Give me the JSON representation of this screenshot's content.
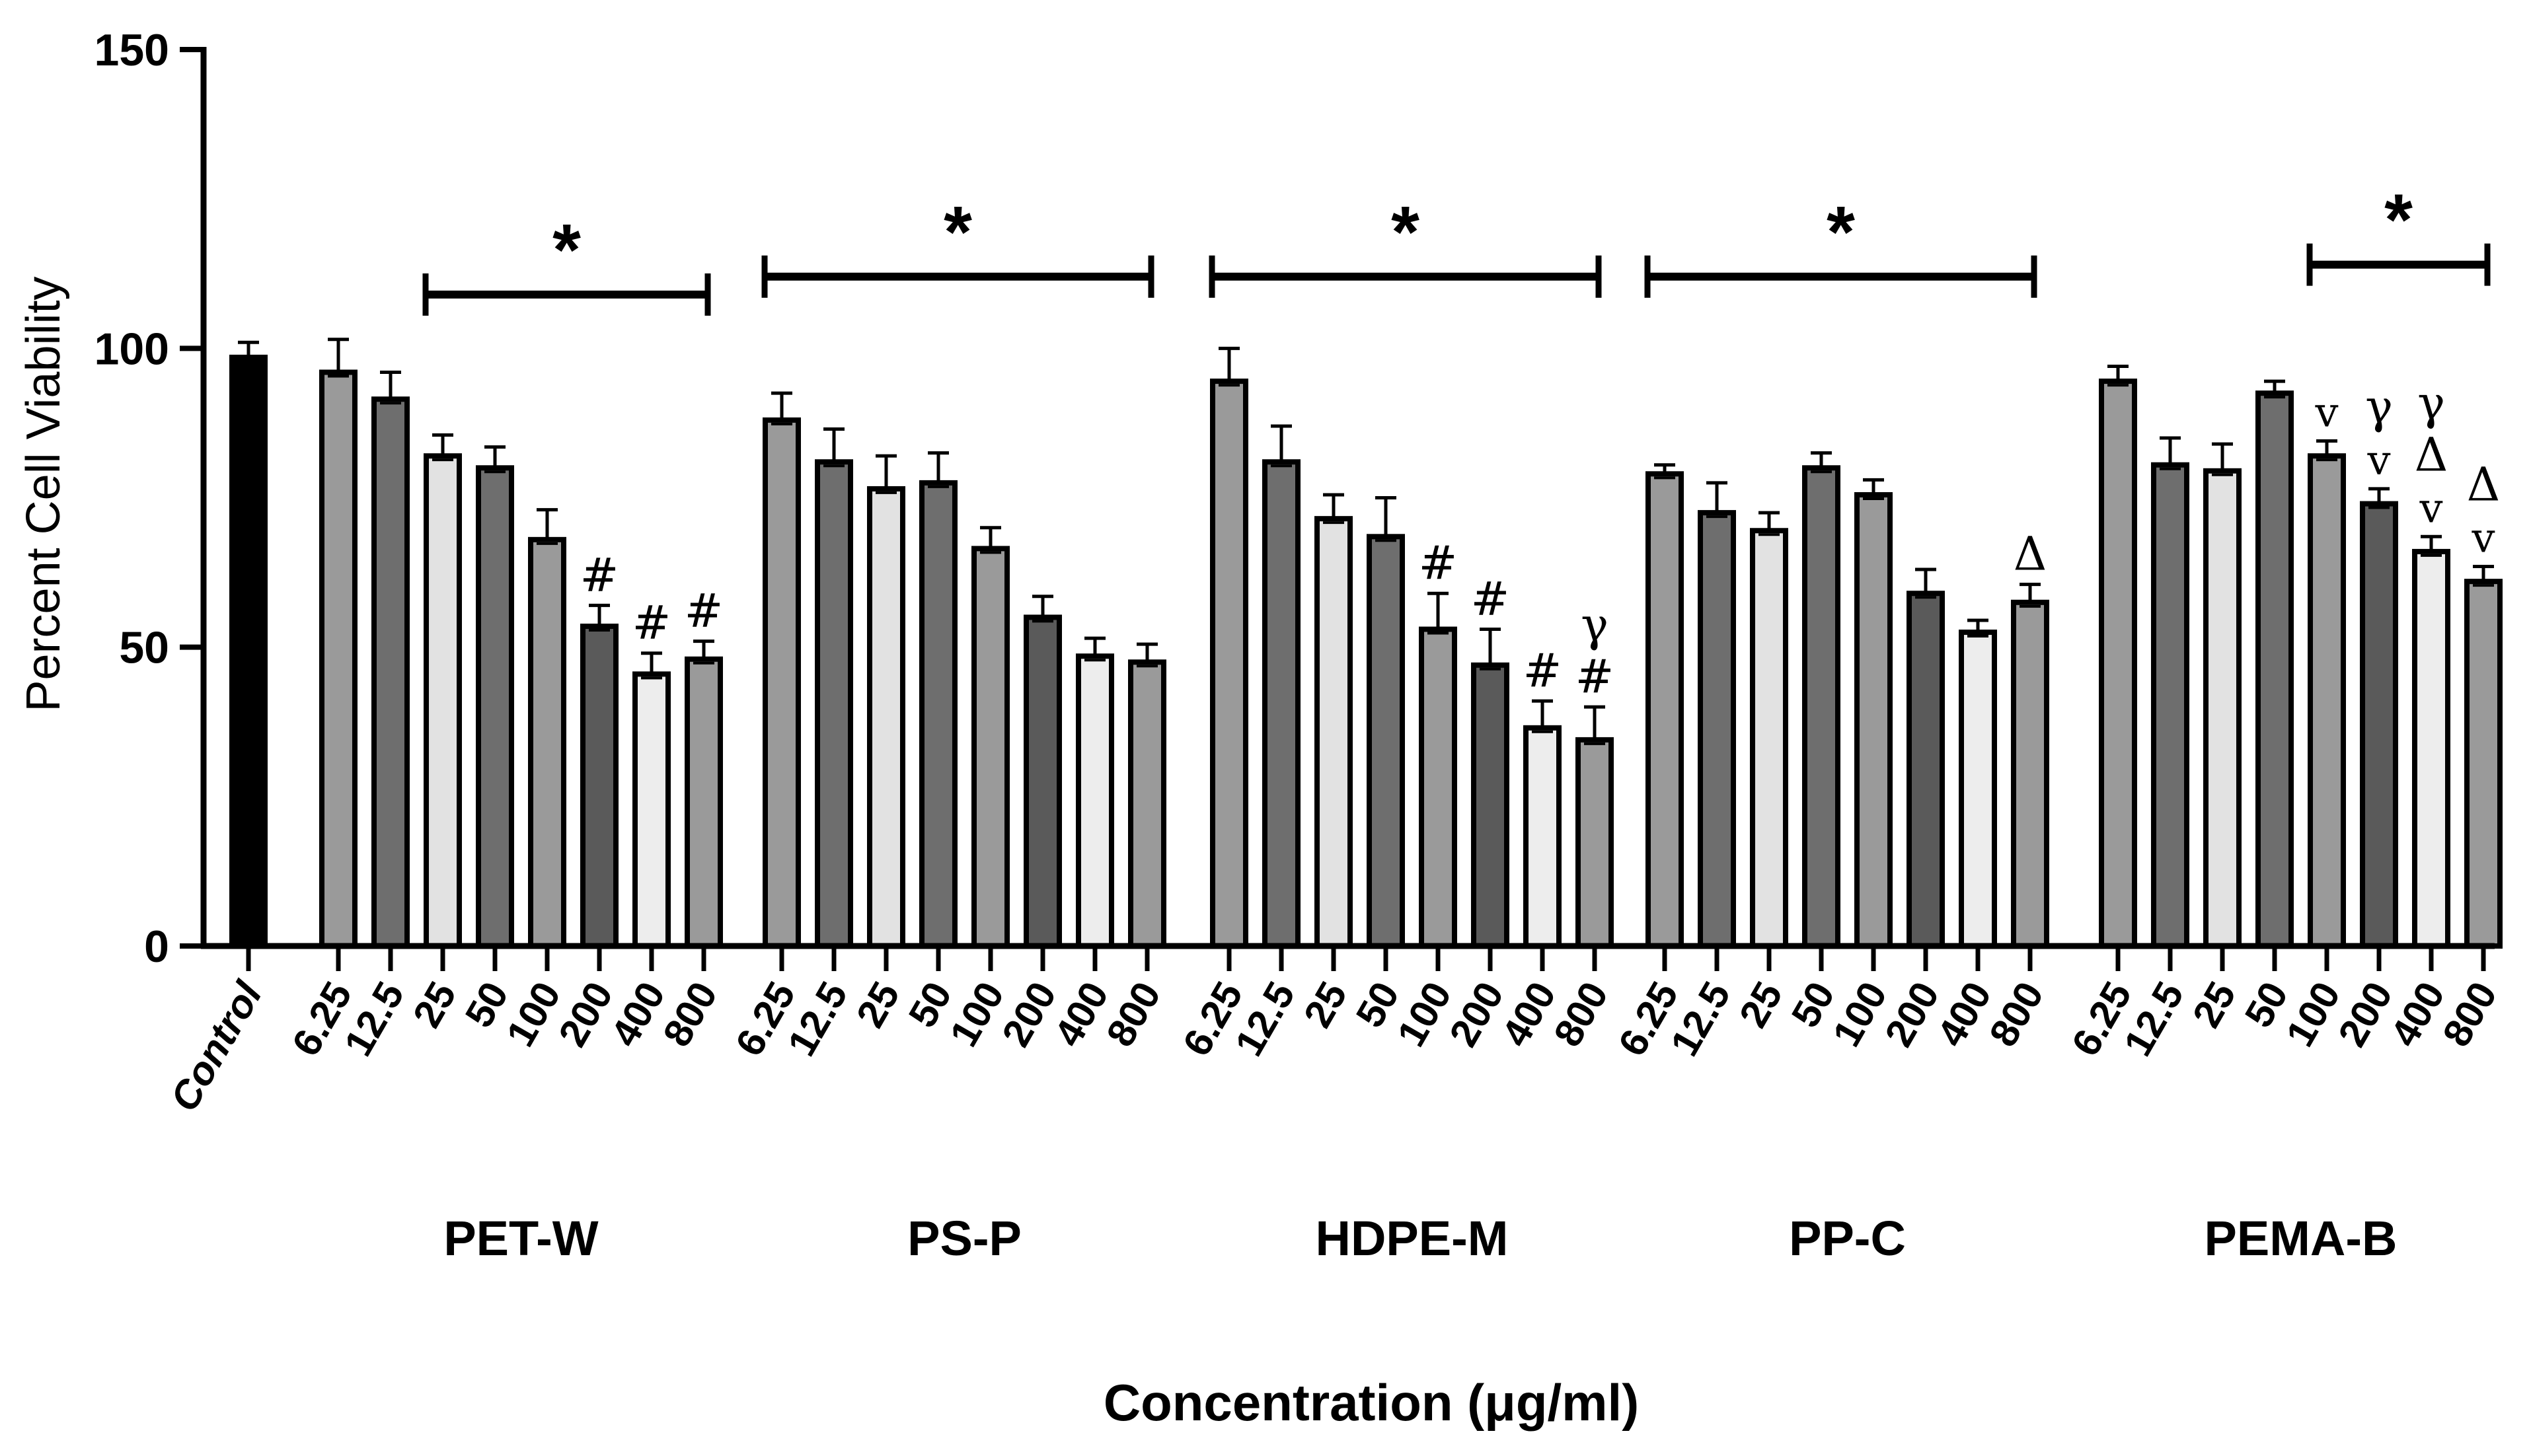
{
  "chart_data": {
    "type": "bar",
    "title": "",
    "ylabel": "Percent Cell Viability",
    "xlabel": "Concentration (μg/ml)",
    "ylim": [
      0,
      150
    ],
    "yticks": [
      "0",
      "50",
      "100",
      "150"
    ],
    "control": {
      "label": "Control",
      "value": 98.5,
      "error": 2.5
    },
    "groups": [
      {
        "name": "PET-W",
        "concentrations": [
          "6.25",
          "12.5",
          "25",
          "50",
          "100",
          "200",
          "400",
          "800"
        ],
        "values": [
          96,
          91.5,
          82,
          80,
          68,
          53.5,
          45.5,
          48
        ],
        "errors": [
          5.5,
          4.5,
          3.5,
          3.5,
          5,
          3.5,
          3.5,
          3
        ],
        "significance_bar": {
          "from_index": 2,
          "to_index": 7,
          "y": 109,
          "marker": "*"
        },
        "annotations": [
          [],
          [],
          [],
          [],
          [],
          [
            "#"
          ],
          [
            "#"
          ],
          [
            "#"
          ]
        ]
      },
      {
        "name": "PS-P",
        "concentrations": [
          "6.25",
          "12.5",
          "25",
          "50",
          "100",
          "200",
          "400",
          "800"
        ],
        "values": [
          88,
          81,
          76.5,
          77.5,
          66.5,
          55,
          48.5,
          47.5
        ],
        "errors": [
          4.5,
          5.5,
          5.5,
          5,
          3.5,
          3.5,
          3,
          3
        ],
        "significance_bar": {
          "from_index": 0,
          "to_index": 7,
          "y": 112,
          "marker": "*"
        },
        "annotations": [
          [],
          [],
          [],
          [],
          [],
          [],
          [],
          []
        ]
      },
      {
        "name": "HDPE-M",
        "concentrations": [
          "6.25",
          "12.5",
          "25",
          "50",
          "100",
          "200",
          "400",
          "800"
        ],
        "values": [
          94.5,
          81,
          71.5,
          68.5,
          53,
          47,
          36.5,
          34.5
        ],
        "errors": [
          5.5,
          6,
          4,
          6.5,
          6,
          6,
          4.5,
          5.5
        ],
        "significance_bar": {
          "from_index": 0,
          "to_index": 7,
          "y": 112,
          "marker": "*"
        },
        "annotations": [
          [],
          [],
          [],
          [],
          [
            "#"
          ],
          [
            "#"
          ],
          [
            "#"
          ],
          [
            "#",
            "γ"
          ]
        ]
      },
      {
        "name": "PP-C",
        "concentrations": [
          "6.25",
          "12.5",
          "25",
          "50",
          "100",
          "200",
          "400",
          "800"
        ],
        "values": [
          79,
          72.5,
          69.5,
          80,
          75.5,
          59,
          52.5,
          57.5
        ],
        "errors": [
          1.5,
          5,
          3,
          2.5,
          2.5,
          4,
          2,
          3
        ],
        "significance_bar": {
          "from_index": 0,
          "to_index": 7,
          "y": 112,
          "marker": "*"
        },
        "annotations": [
          [],
          [],
          [],
          [],
          [],
          [],
          [],
          [
            "Δ"
          ]
        ]
      },
      {
        "name": "PEMA-B",
        "concentrations": [
          "6.25",
          "12.5",
          "25",
          "50",
          "100",
          "200",
          "400",
          "800"
        ],
        "values": [
          94.5,
          80.5,
          79.5,
          92.5,
          82,
          74,
          66,
          61
        ],
        "errors": [
          2.5,
          4.5,
          4.5,
          2,
          2.5,
          2.5,
          2.5,
          2.5
        ],
        "significance_bar": {
          "from_index": 4,
          "to_index": 7,
          "y": 114,
          "marker": "*"
        },
        "annotations": [
          [],
          [],
          [],
          [],
          [
            "v"
          ],
          [
            "v",
            "γ"
          ],
          [
            "v",
            "Δ",
            "γ"
          ],
          [
            "v",
            "Δ"
          ]
        ]
      }
    ],
    "bar_colors": [
      "#9a9a9a",
      "#6e6e6e",
      "#e2e2e2",
      "#6e6e6e",
      "#9a9a9a",
      "#5a5a5a",
      "#ededed",
      "#9a9a9a"
    ],
    "control_color": "#000000",
    "axis_color": "#000000"
  }
}
